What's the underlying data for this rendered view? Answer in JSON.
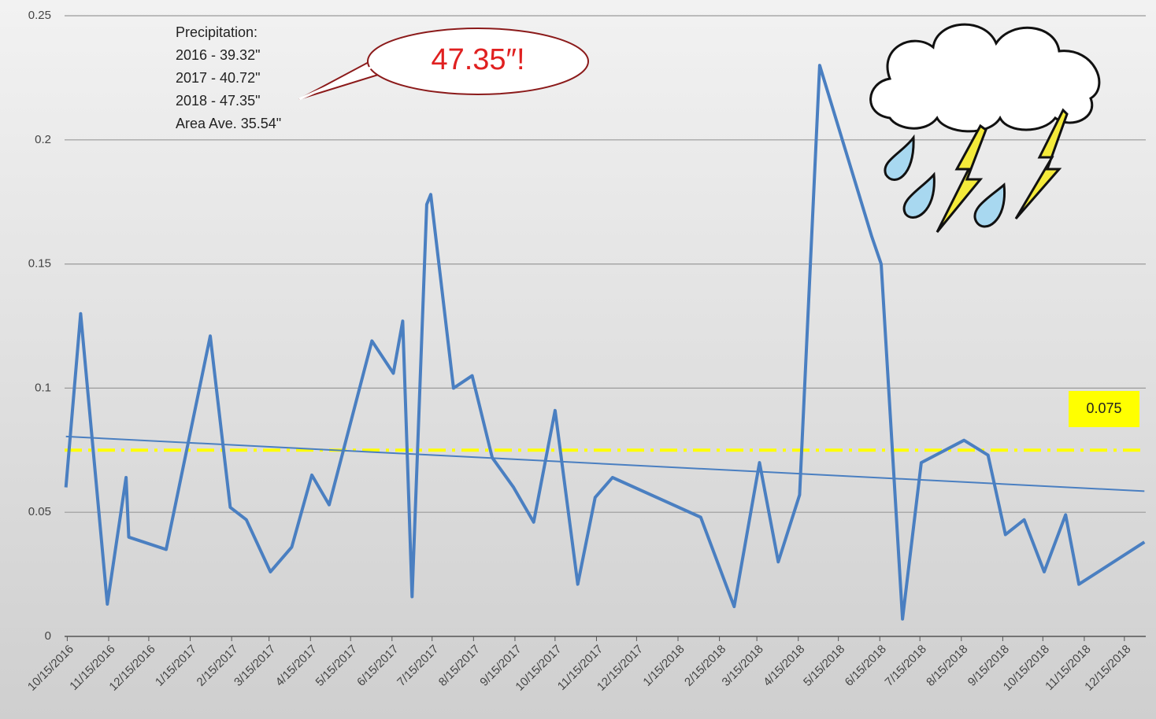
{
  "chart_data": {
    "type": "line",
    "annotation": [
      "Precipitation:",
      "2016 - 39.32\"",
      "2017 - 40.72\"",
      "2018 - 47.35\"",
      "Area Ave. 35.54\""
    ],
    "callout": "47.35″!",
    "color": "#4a7fc1",
    "x": [
      "10/14/2016",
      "10/25/2016",
      "11/14/2016",
      "11/28/2016",
      "11/30/2016",
      "12/28/2016",
      "1/30/2017",
      "2/14/2017",
      "2/26/2017",
      "3/16/2017",
      "4/1/2017",
      "4/16/2017",
      "4/29/2017",
      "5/31/2017",
      "6/16/2017",
      "6/23/2017",
      "6/30/2017",
      "7/11/2017",
      "7/14/2017",
      "7/31/2017",
      "8/14/2017",
      "8/29/2017",
      "9/14/2017",
      "9/29/2017",
      "10/15/2017",
      "11/1/2017",
      "11/14/2017",
      "11/27/2017",
      "2/1/2018",
      "2/26/2018",
      "3/17/2018",
      "3/31/2018",
      "4/16/2018",
      "5/1/2018",
      "6/9/2018",
      "6/16/2018",
      "7/2/2018",
      "7/16/2018",
      "8/17/2018",
      "9/4/2018",
      "9/17/2018",
      "10/1/2018",
      "10/16/2018",
      "11/1/2018",
      "11/11/2018",
      "12/30/2018"
    ],
    "values": [
      0.06,
      0.13,
      0.013,
      0.064,
      0.04,
      0.035,
      0.121,
      0.052,
      0.047,
      0.026,
      0.036,
      0.065,
      0.053,
      0.119,
      0.106,
      0.127,
      0.016,
      0.174,
      0.178,
      0.1,
      0.105,
      0.072,
      0.06,
      0.046,
      0.091,
      0.021,
      0.056,
      0.064,
      0.048,
      0.012,
      0.07,
      0.03,
      0.057,
      0.23,
      0.161,
      0.15,
      0.007,
      0.07,
      0.079,
      0.073,
      0.041,
      0.047,
      0.026,
      0.049,
      0.021,
      0.038
    ],
    "trendline": {
      "color": "#4a7fc1",
      "x": [
        "10/14/2016",
        "12/30/2018"
      ],
      "values": [
        0.0805,
        0.0585
      ]
    },
    "reference_line": {
      "value": 0.075,
      "color": "#ffff00"
    },
    "xlim": [
      "10/13/2016",
      "12/31/2018"
    ],
    "xticks": [
      "10/15/2016",
      "11/15/2016",
      "12/15/2016",
      "1/15/2017",
      "2/15/2017",
      "3/15/2017",
      "4/15/2017",
      "5/15/2017",
      "6/15/2017",
      "7/15/2017",
      "8/15/2017",
      "9/15/2017",
      "10/15/2017",
      "11/15/2017",
      "12/15/2017",
      "1/15/2018",
      "2/15/2018",
      "3/15/2018",
      "4/15/2018",
      "5/15/2018",
      "6/15/2018",
      "7/15/2018",
      "8/15/2018",
      "9/15/2018",
      "10/15/2018",
      "11/15/2018",
      "12/15/2018"
    ],
    "ylim": [
      0,
      0.25
    ],
    "yticks": [
      0,
      0.05,
      0.1,
      0.15,
      0.2,
      0.25
    ],
    "grid": true
  }
}
